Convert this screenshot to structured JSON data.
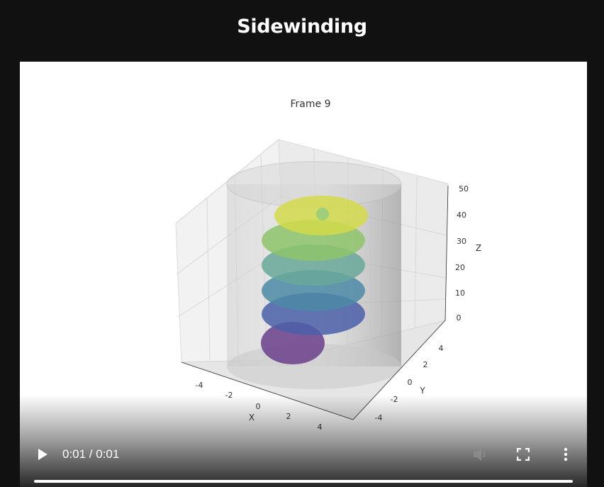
{
  "page": {
    "title": "Sidewinding"
  },
  "video": {
    "time_display": "0:01 / 0:01",
    "progress_fraction": 1.0,
    "muted": true,
    "icons": {
      "play": "play-icon",
      "volume": "volume-muted-icon",
      "fullscreen": "fullscreen-icon",
      "more": "more-vertical-icon"
    }
  },
  "plot": {
    "title": "Frame 9",
    "xlabel": "X",
    "ylabel": "Y",
    "zlabel": "Z",
    "x_ticks": [
      "-4",
      "-2",
      "0",
      "2",
      "4"
    ],
    "y_ticks": [
      "4",
      "2",
      "0",
      "-2",
      "-4"
    ],
    "z_ticks": [
      "50",
      "40",
      "30",
      "20",
      "10",
      "0"
    ],
    "colormap": [
      "#6b3f8c",
      "#4b5fa8",
      "#4c8aa6",
      "#69a89a",
      "#8dc46a",
      "#d2db4a"
    ]
  }
}
